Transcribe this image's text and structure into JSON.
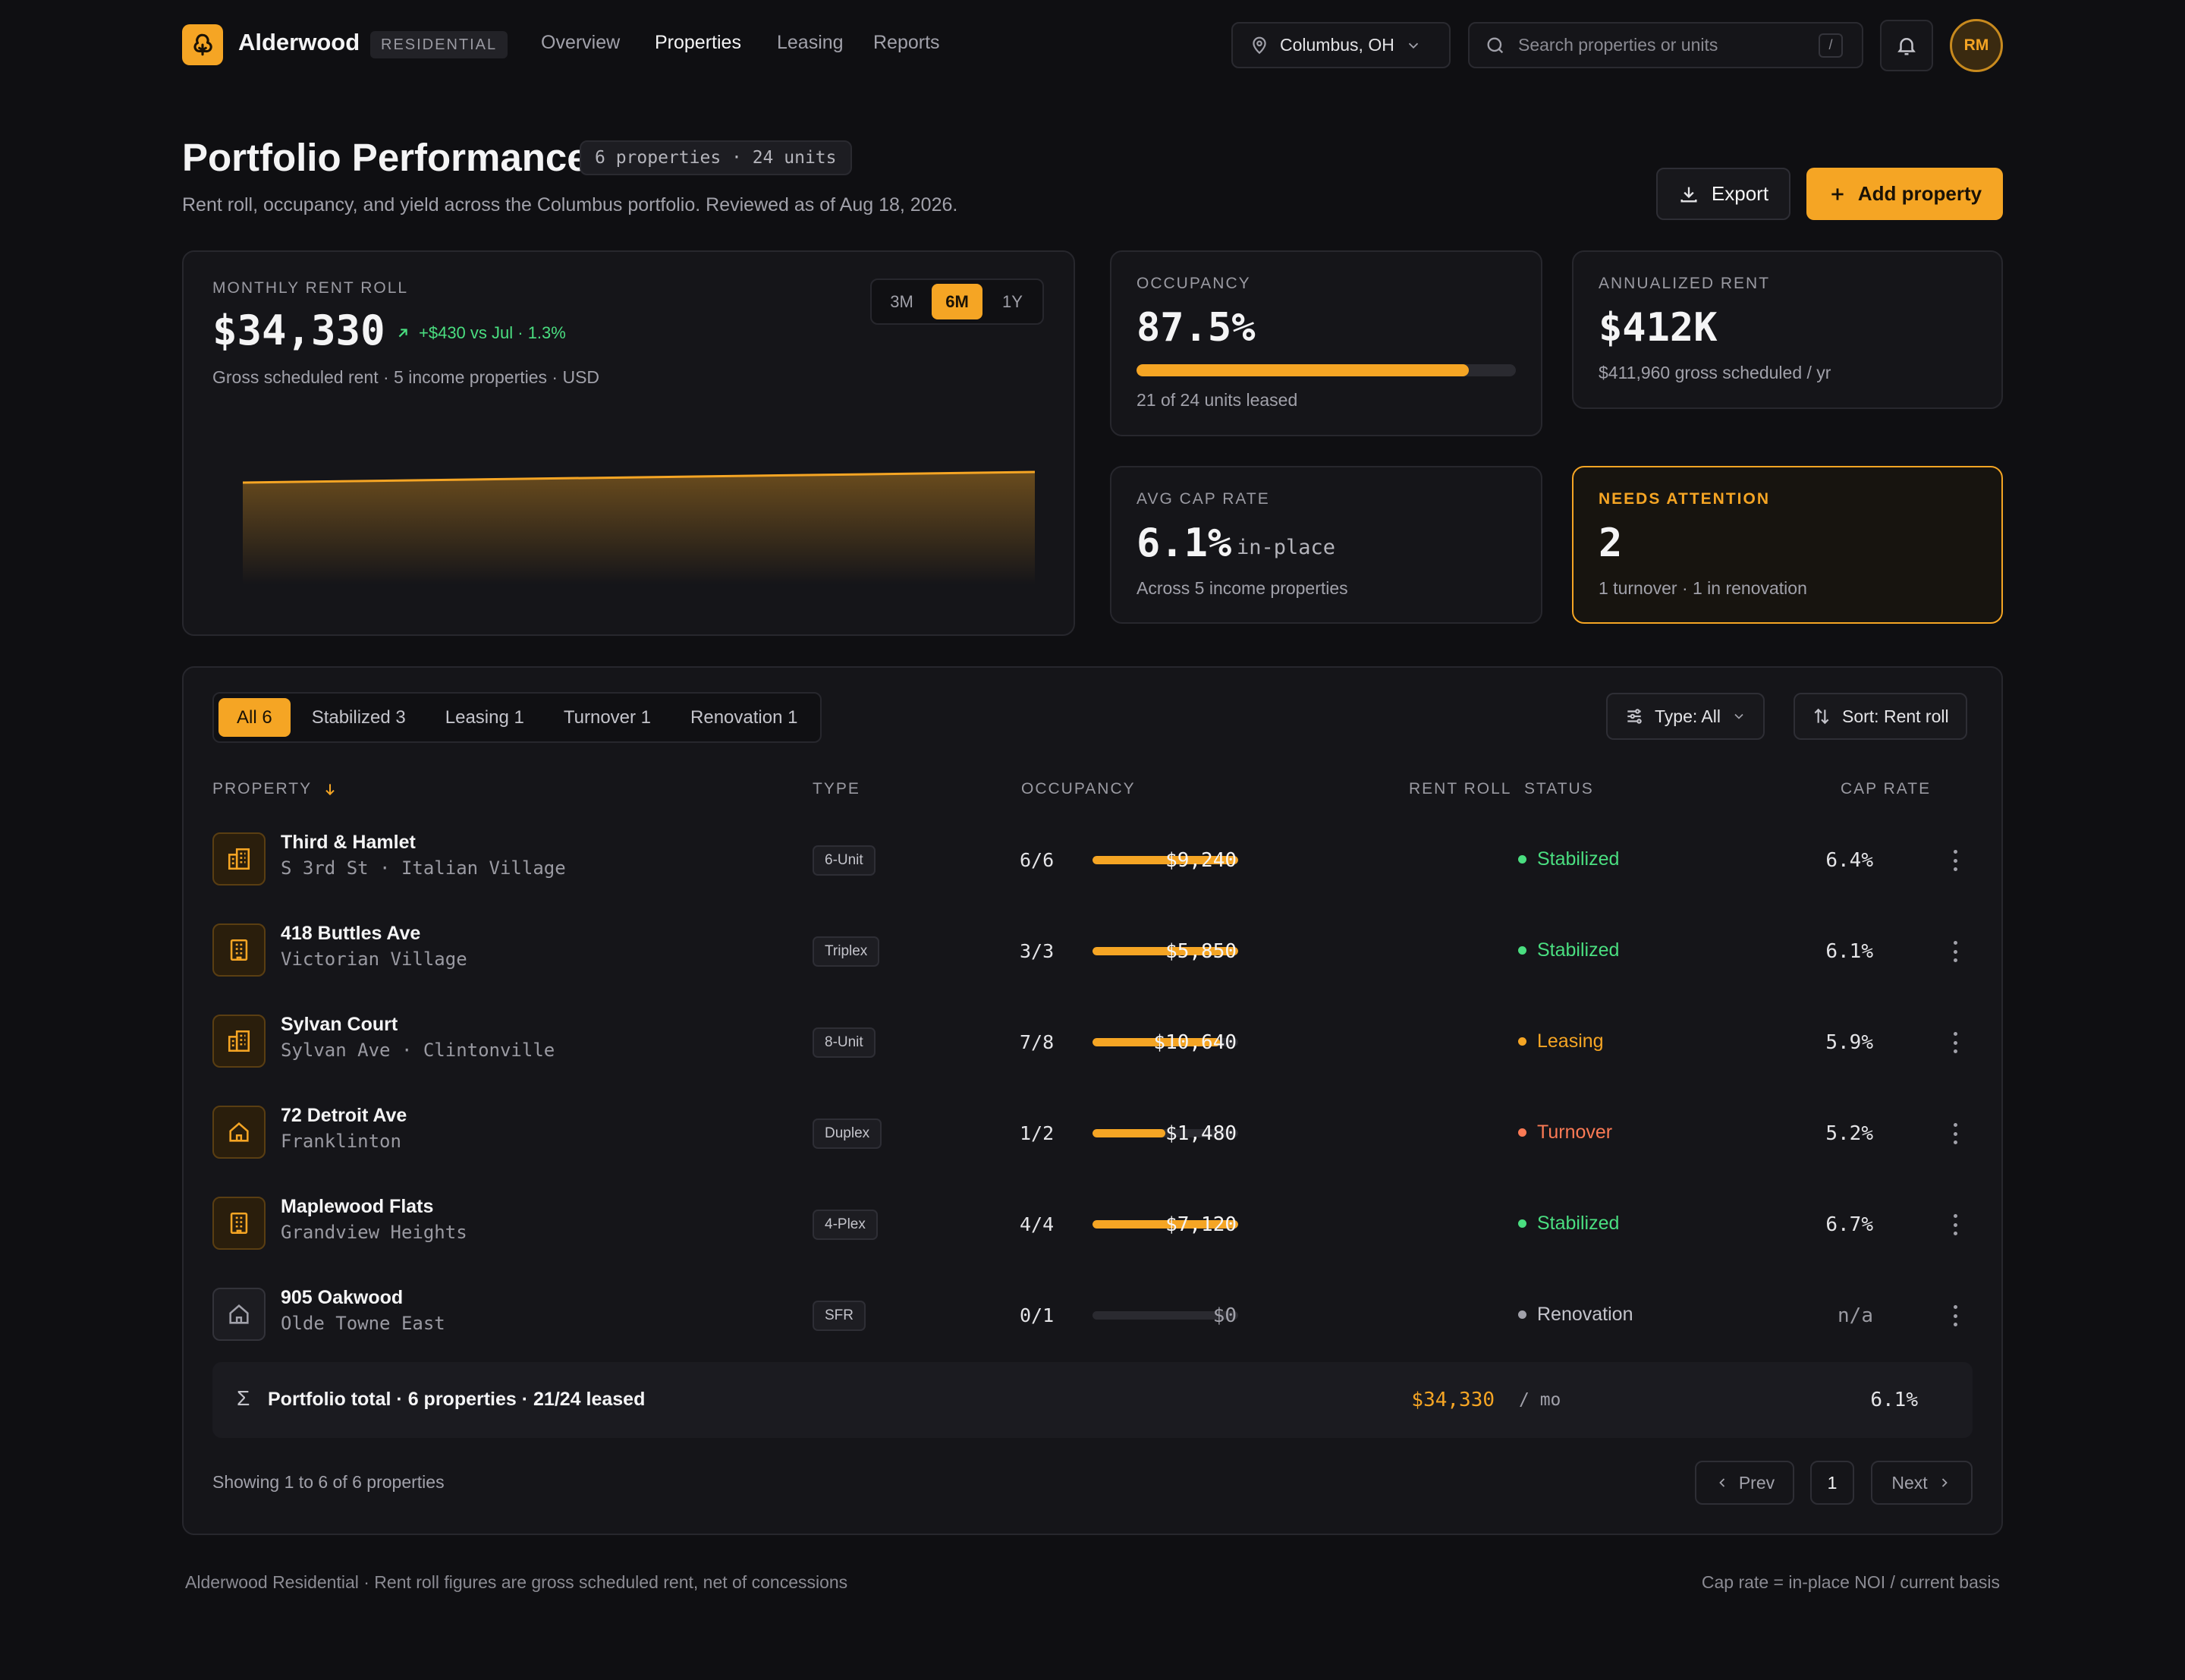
{
  "app": {
    "brand": "Alderwood",
    "brand_tag": "RESIDENTIAL",
    "nav": [
      "Overview",
      "Properties",
      "Leasing",
      "Reports"
    ],
    "active_nav": "Properties",
    "location": "Columbus, OH",
    "search_placeholder": "Search properties or units",
    "search_shortcut": "/",
    "avatar_initials": "RM",
    "accent_color": "#f5a524"
  },
  "header": {
    "title": "Portfolio Performance",
    "chip": "6 properties · 24 units",
    "subtitle": "Rent roll, occupancy, and yield across the Columbus portfolio. Reviewed as of Aug 18, 2026.",
    "export_label": "Export",
    "add_label": "Add property"
  },
  "rent_roll": {
    "label": "MONTHLY RENT ROLL",
    "value": "$34,330",
    "delta": "+$430 vs Jul · 1.3%",
    "caption": "Gross scheduled rent · 5 income properties · USD",
    "ranges": [
      "3M",
      "6M",
      "1Y"
    ],
    "active_range": "6M"
  },
  "occupancy": {
    "label": "OCCUPANCY",
    "value": "87.5%",
    "fraction": 0.875,
    "caption": "21 of 24 units leased"
  },
  "annualized": {
    "label": "ANNUALIZED RENT",
    "value": "$412K",
    "caption": "$411,960 gross scheduled / yr"
  },
  "cap_rate": {
    "label": "AVG CAP RATE",
    "value": "6.1%",
    "suffix": "in-place",
    "caption": "Across 5 income properties"
  },
  "attention": {
    "label": "NEEDS ATTENTION",
    "value": "2",
    "caption": "1 turnover · 1 in renovation"
  },
  "filters": [
    {
      "label": "All 6",
      "active": true
    },
    {
      "label": "Stabilized 3",
      "active": false
    },
    {
      "label": "Leasing 1",
      "active": false
    },
    {
      "label": "Turnover 1",
      "active": false
    },
    {
      "label": "Renovation 1",
      "active": false
    }
  ],
  "controls": {
    "type": "Type: All",
    "sort": "Sort: Rent roll"
  },
  "columns": {
    "property": "PROPERTY",
    "type": "TYPE",
    "occupancy": "OCCUPANCY",
    "rent": "RENT ROLL",
    "status": "STATUS",
    "cap": "CAP RATE"
  },
  "status_colors": {
    "Stabilized": "#4ade80",
    "Leasing": "#f5a524",
    "Turnover": "#fb7a55",
    "Renovation": "#a1a1aa"
  },
  "properties": [
    {
      "name": "Third & Hamlet",
      "address": "S 3rd St · Italian Village",
      "type": "6-Unit",
      "occ": "6/6",
      "occ_frac": 1.0,
      "rent": "$9,240",
      "status": "Stabilized",
      "cap": "6.4%",
      "icon": "apartment-building-icon"
    },
    {
      "name": "418 Buttles Ave",
      "address": "Victorian Village",
      "type": "Triplex",
      "occ": "3/3",
      "occ_frac": 1.0,
      "rent": "$5,850",
      "status": "Stabilized",
      "cap": "6.1%",
      "icon": "office-building-icon"
    },
    {
      "name": "Sylvan Court",
      "address": "Sylvan Ave · Clintonville",
      "type": "8-Unit",
      "occ": "7/8",
      "occ_frac": 0.875,
      "rent": "$10,640",
      "status": "Leasing",
      "cap": "5.9%",
      "icon": "apartment-building-icon"
    },
    {
      "name": "72 Detroit Ave",
      "address": "Franklinton",
      "type": "Duplex",
      "occ": "1/2",
      "occ_frac": 0.5,
      "rent": "$1,480",
      "status": "Turnover",
      "cap": "5.2%",
      "icon": "house-icon"
    },
    {
      "name": "Maplewood Flats",
      "address": "Grandview Heights",
      "type": "4-Plex",
      "occ": "4/4",
      "occ_frac": 1.0,
      "rent": "$7,120",
      "status": "Stabilized",
      "cap": "6.7%",
      "icon": "office-building-icon"
    },
    {
      "name": "905 Oakwood",
      "address": "Olde Towne East",
      "type": "SFR",
      "occ": "0/1",
      "occ_frac": 0.0,
      "rent": "$0",
      "status": "Renovation",
      "cap": "n/a",
      "icon": "house-icon"
    }
  ],
  "total": {
    "label": "Portfolio total · 6 properties · 21/24 leased",
    "rent": "$34,330",
    "unit": "/ mo",
    "cap": "6.1%"
  },
  "pagination": {
    "summary": "Showing 1 to 6 of 6 properties",
    "prev": "Prev",
    "page": "1",
    "next": "Next"
  },
  "footer": {
    "left": "Alderwood Residential · Rent roll figures are gross scheduled rent, net of concessions",
    "right": "Cap rate = in-place NOI / current basis"
  }
}
